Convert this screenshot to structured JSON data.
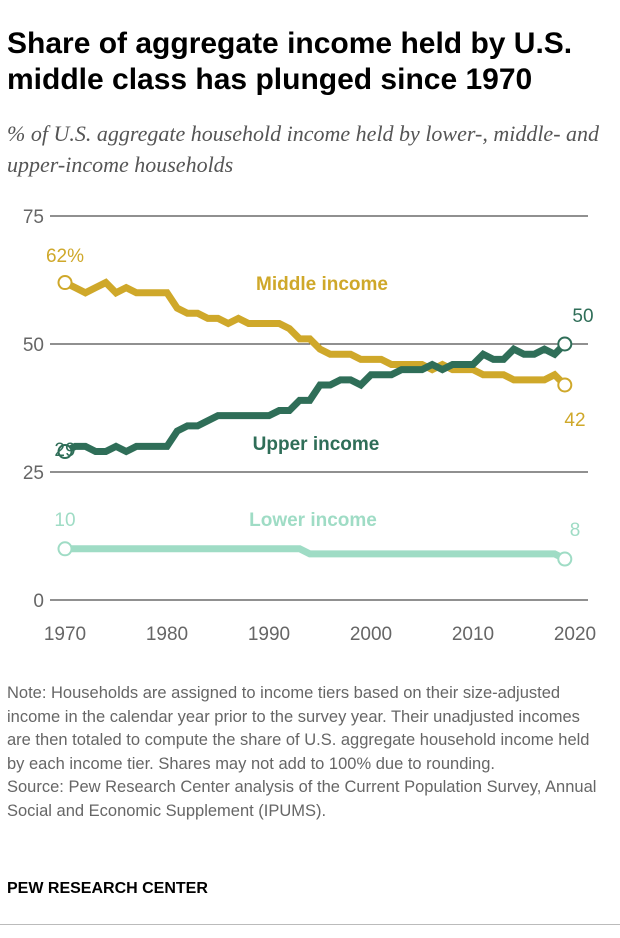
{
  "title": "Share of aggregate income held by U.S. middle class has plunged since 1970",
  "subtitle": "% of U.S. aggregate household income held by lower-, middle- and upper-income households",
  "note": "Note: Households are assigned to income tiers based on their size-adjusted income in the calendar year prior to the survey year. Their unadjusted incomes are then totaled to compute the share of U.S. aggregate household income held by each income tier. Shares may not add to 100% due to rounding.",
  "source": "Source: Pew Research Center analysis of the Current Population Survey, Annual Social and Economic Supplement (IPUMS).",
  "brand": "PEW RESEARCH CENTER",
  "chart_data": {
    "type": "line",
    "title": "",
    "xlabel": "",
    "ylabel": "",
    "xlim": [
      1970,
      2020
    ],
    "ylim": [
      0,
      75
    ],
    "xticks": [
      "1970",
      "1980",
      "1990",
      "2000",
      "2010",
      "2020"
    ],
    "yticks": [
      "0",
      "25",
      "50",
      "75"
    ],
    "grid": true,
    "x_start": 1970,
    "series": [
      {
        "name": "Middle income",
        "color": "#cfa82a",
        "start_label": "62%",
        "end_label": "42",
        "values": [
          62,
          61,
          60,
          61,
          62,
          60,
          61,
          60,
          60,
          60,
          60,
          57,
          56,
          56,
          55,
          55,
          54,
          55,
          54,
          54,
          54,
          54,
          53,
          51,
          51,
          49,
          48,
          48,
          48,
          47,
          47,
          47,
          46,
          46,
          46,
          46,
          45,
          46,
          45,
          45,
          45,
          44,
          44,
          44,
          43,
          43,
          43,
          43,
          44,
          42
        ]
      },
      {
        "name": "Upper income",
        "color": "#2f6e58",
        "start_label": "29",
        "end_label": "50",
        "values": [
          29,
          30,
          30,
          29,
          29,
          30,
          29,
          30,
          30,
          30,
          30,
          33,
          34,
          34,
          35,
          36,
          36,
          36,
          36,
          36,
          36,
          37,
          37,
          39,
          39,
          42,
          42,
          43,
          43,
          42,
          44,
          44,
          44,
          45,
          45,
          45,
          46,
          45,
          46,
          46,
          46,
          48,
          47,
          47,
          49,
          48,
          48,
          49,
          48,
          50
        ]
      },
      {
        "name": "Lower income",
        "color": "#9fdcc5",
        "start_label": "10",
        "end_label": "8",
        "values": [
          10,
          10,
          10,
          10,
          10,
          10,
          10,
          10,
          10,
          10,
          10,
          10,
          10,
          10,
          10,
          10,
          10,
          10,
          10,
          10,
          10,
          10,
          10,
          10,
          9,
          9,
          9,
          9,
          9,
          9,
          9,
          9,
          9,
          9,
          9,
          9,
          9,
          9,
          9,
          9,
          9,
          9,
          9,
          9,
          9,
          9,
          9,
          9,
          9,
          8
        ]
      }
    ]
  }
}
